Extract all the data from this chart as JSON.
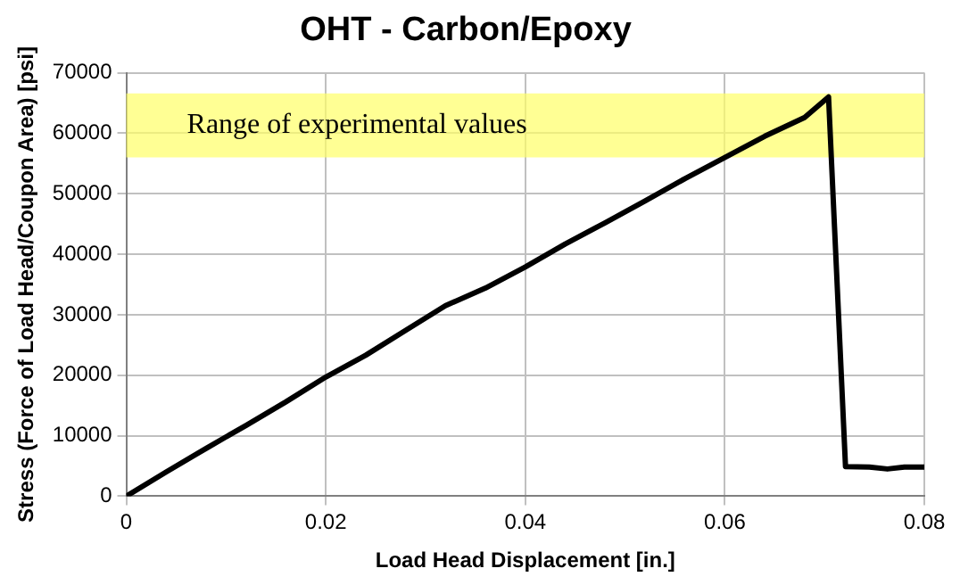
{
  "chart_data": {
    "type": "line",
    "title": "OHT - Carbon/Epoxy",
    "xlabel": "Load Head Displacement [in.]",
    "ylabel": "Stress (Force of Load Head/Coupon Area) [psi]",
    "x": [
      0,
      0.004,
      0.008,
      0.012,
      0.016,
      0.02,
      0.024,
      0.028,
      0.032,
      0.036,
      0.04,
      0.044,
      0.048,
      0.052,
      0.056,
      0.06,
      0.064,
      0.068,
      0.0704,
      0.0721,
      0.0745,
      0.0763,
      0.078,
      0.08
    ],
    "series": [
      {
        "color": "#000000",
        "values": [
          0,
          4000,
          7900,
          11700,
          15600,
          19700,
          23300,
          27400,
          31500,
          34400,
          37900,
          41700,
          45200,
          48800,
          52500,
          56000,
          59500,
          62600,
          66000,
          4900,
          4800,
          4500,
          4800,
          4800
        ]
      }
    ],
    "xlim": [
      0,
      0.08
    ],
    "xticks": [
      0,
      0.02,
      0.04,
      0.06,
      0.08
    ],
    "ylim": [
      0,
      70000
    ],
    "yticks": [
      0,
      10000,
      20000,
      30000,
      40000,
      50000,
      60000,
      70000
    ],
    "grid": true,
    "marker": "none",
    "line_style": "solid",
    "bands": [
      {
        "axis": "y",
        "from": 56000,
        "to": 66600,
        "label": "Range of experimental values",
        "color": "#ffff66"
      }
    ]
  }
}
